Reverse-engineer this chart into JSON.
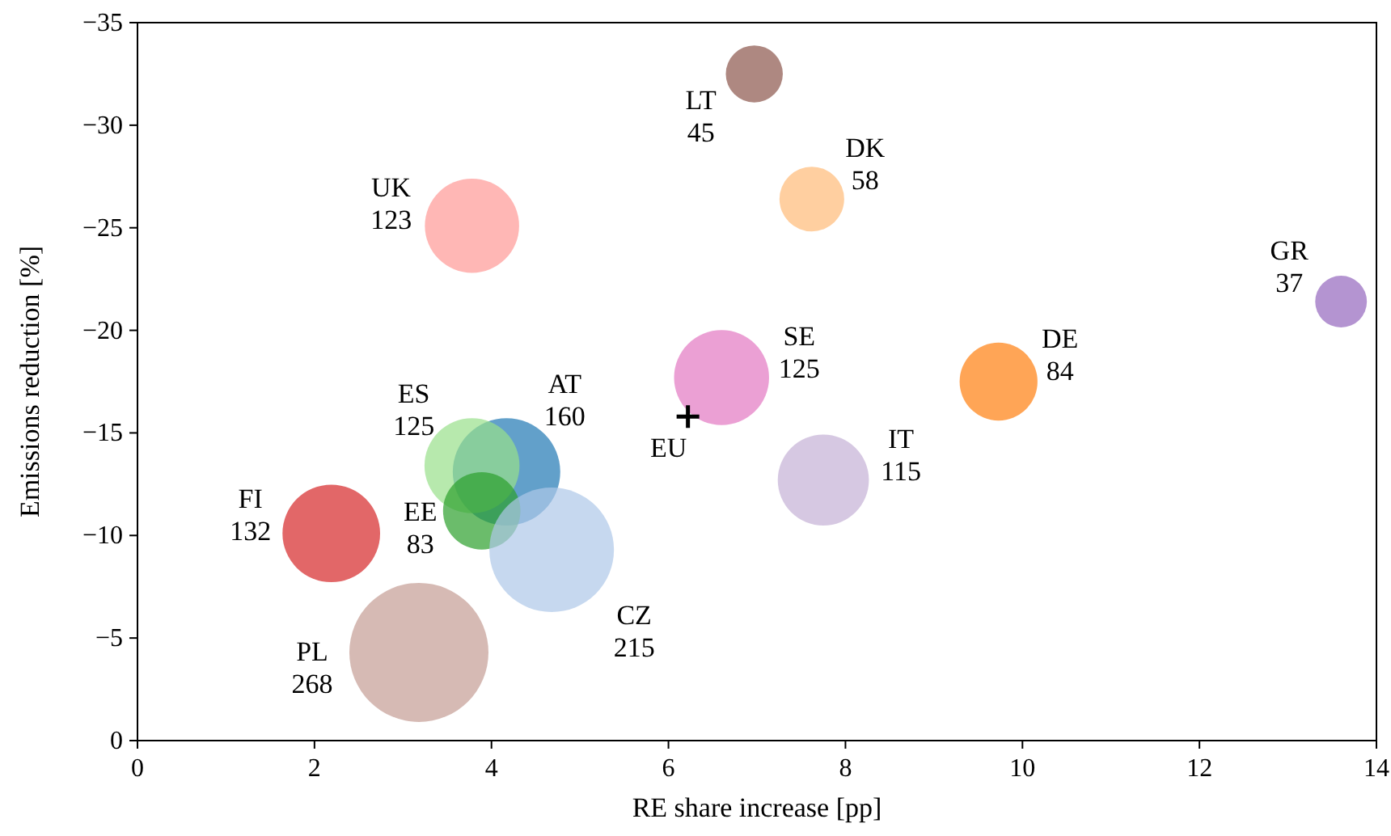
{
  "chart_data": {
    "type": "bubble",
    "xlabel": "RE share increase [pp]",
    "ylabel": "Emissions reduction [%]",
    "xlim": [
      0,
      14
    ],
    "xticks": [
      0,
      2,
      4,
      6,
      8,
      10,
      12,
      14
    ],
    "ylim": [
      0,
      -35
    ],
    "yticks": [
      {
        "value": 0,
        "label": "0"
      },
      {
        "value": -5,
        "label": "−5"
      },
      {
        "value": -10,
        "label": "−10"
      },
      {
        "value": -15,
        "label": "−15"
      },
      {
        "value": -20,
        "label": "−20"
      },
      {
        "value": -25,
        "label": "−25"
      },
      {
        "value": -30,
        "label": "−30"
      },
      {
        "value": -35,
        "label": "−35"
      }
    ],
    "grid": false,
    "series": [
      {
        "name": "LT",
        "color": "#8c564b",
        "x": [
          6.97
        ],
        "values": [
          -32.5
        ],
        "sizes": [
          45
        ],
        "value_labels": [
          "45"
        ]
      },
      {
        "name": "DK",
        "color": "#ffbb78",
        "x": [
          7.62
        ],
        "values": [
          -26.4
        ],
        "sizes": [
          58
        ],
        "value_labels": [
          "58"
        ]
      },
      {
        "name": "UK",
        "color": "#ff9896",
        "x": [
          3.78
        ],
        "values": [
          -25.1
        ],
        "sizes": [
          123
        ],
        "value_labels": [
          "123"
        ]
      },
      {
        "name": "GR",
        "color": "#9467bd",
        "x": [
          13.6
        ],
        "values": [
          -21.4
        ],
        "sizes": [
          37
        ],
        "value_labels": [
          "37"
        ]
      },
      {
        "name": "SE",
        "color": "#e377c2",
        "x": [
          6.6
        ],
        "values": [
          -17.7
        ],
        "sizes": [
          125
        ],
        "value_labels": [
          "125"
        ]
      },
      {
        "name": "DE",
        "color": "#ff7f0e",
        "x": [
          9.73
        ],
        "values": [
          -17.5
        ],
        "sizes": [
          84
        ],
        "value_labels": [
          "84"
        ]
      },
      {
        "name": "AT",
        "color": "#1f77b4",
        "x": [
          4.17
        ],
        "values": [
          -13.1
        ],
        "sizes": [
          160
        ],
        "value_labels": [
          "160"
        ]
      },
      {
        "name": "ES",
        "color": "#98df8a",
        "x": [
          3.78
        ],
        "values": [
          -13.4
        ],
        "sizes": [
          125
        ],
        "value_labels": [
          "125"
        ]
      },
      {
        "name": "IT",
        "color": "#c5b0d5",
        "x": [
          7.75
        ],
        "values": [
          -12.7
        ],
        "sizes": [
          115
        ],
        "value_labels": [
          "115"
        ]
      },
      {
        "name": "EE",
        "color": "#2ca02c",
        "x": [
          3.89
        ],
        "values": [
          -11.2
        ],
        "sizes": [
          83
        ],
        "value_labels": [
          "83"
        ]
      },
      {
        "name": "FI",
        "color": "#d62728",
        "x": [
          2.19
        ],
        "values": [
          -10.1
        ],
        "sizes": [
          132
        ],
        "value_labels": [
          "132"
        ]
      },
      {
        "name": "CZ",
        "color": "#aec7e8",
        "x": [
          4.68
        ],
        "values": [
          -9.3
        ],
        "sizes": [
          215
        ],
        "value_labels": [
          "215"
        ]
      },
      {
        "name": "PL",
        "color": "#c49c94",
        "x": [
          3.18
        ],
        "values": [
          -4.3
        ],
        "sizes": [
          268
        ],
        "value_labels": [
          "268"
        ]
      },
      {
        "name": "EU",
        "type": "scatter",
        "marker": "cross",
        "color": "#000000",
        "x": [
          6.22
        ],
        "values": [
          -15.8
        ]
      }
    ]
  }
}
